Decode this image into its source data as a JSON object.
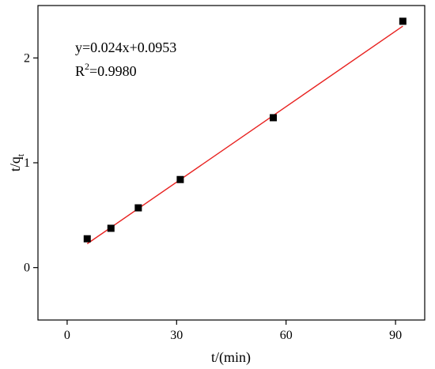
{
  "chart_data": {
    "type": "scatter",
    "xlabel": "t/(min)",
    "ylabel_main": "t/q",
    "ylabel_sub": "t",
    "xlim": [
      -8,
      98
    ],
    "ylim": [
      -0.5,
      2.5
    ],
    "x_ticks": [
      0,
      30,
      60,
      90
    ],
    "x_tick_labels": [
      "0",
      "30",
      "60",
      "90"
    ],
    "y_ticks": [
      0,
      1,
      2
    ],
    "y_tick_labels": [
      "0",
      "1",
      "2"
    ],
    "grid": false,
    "legend": "none",
    "series": [
      {
        "x": [
          5.5,
          12,
          19.5,
          31,
          56.5,
          92
        ],
        "y": [
          0.275,
          0.375,
          0.57,
          0.84,
          1.43,
          2.35
        ]
      }
    ],
    "fit": {
      "slope": 0.024,
      "intercept": 0.0953,
      "x_range": [
        5.5,
        92
      ],
      "color": "#e8211f"
    },
    "annotation": {
      "equation": "y=0.024x+0.0953",
      "r2_prefix": "R",
      "r2_sup": "2",
      "r2_value": "=0.9980"
    },
    "marker_color": "#000000"
  }
}
